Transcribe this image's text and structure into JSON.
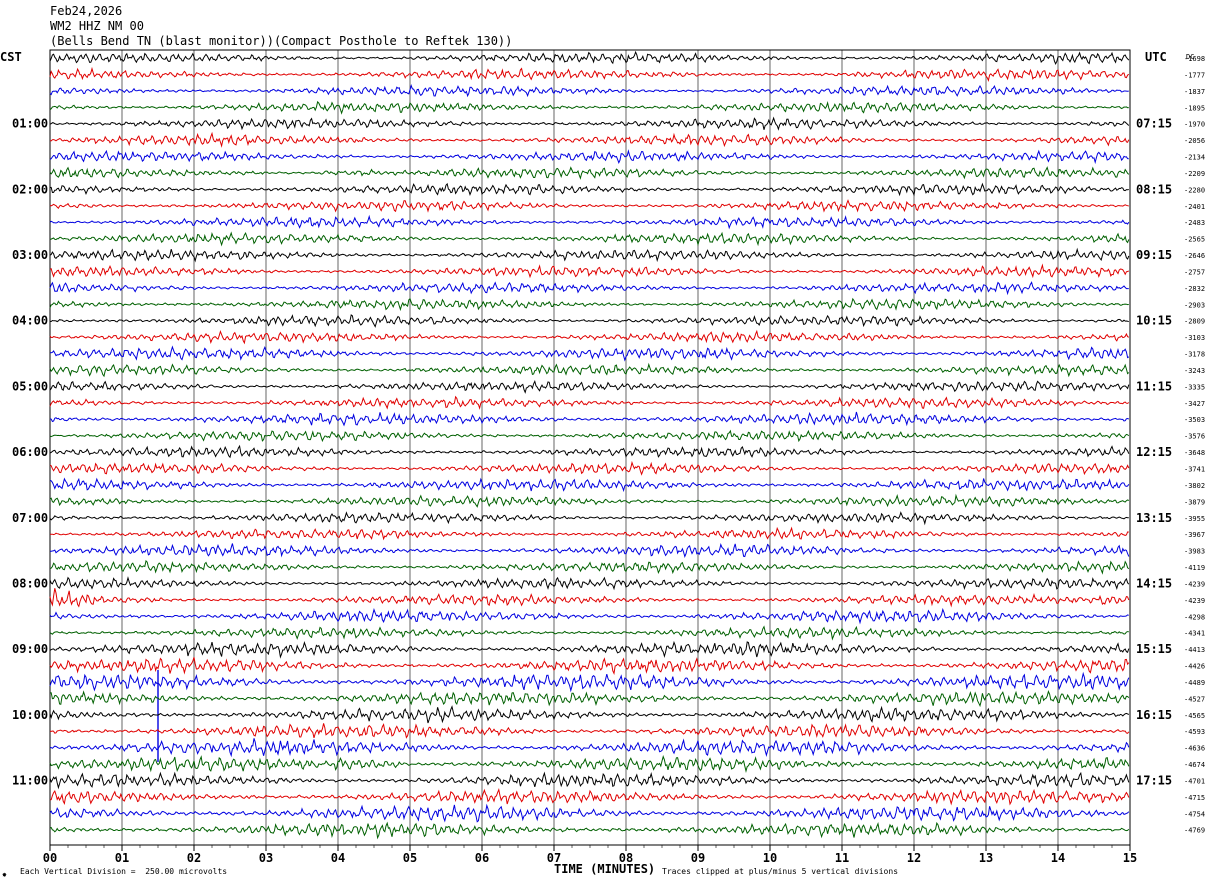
{
  "header": {
    "date": "Feb24,2026",
    "station": "WM2 HHZ NM 00",
    "description": "(Bells Bend TN (blast monitor))(Compact Posthole to Reftek 130))"
  },
  "timezones": {
    "left": "CST",
    "right": "UTC",
    "right_top": "DC"
  },
  "footer": {
    "division_note": "Each Vertical Division =  250.00 microvolts",
    "clip_note": "Traces clipped at plus/minus 5 vertical divisions",
    "corner_mark": "✸"
  },
  "colors": {
    "cycle": [
      "#000000",
      "#e00000",
      "#0000e0",
      "#006000"
    ],
    "grid": "#000000"
  },
  "chart_data": {
    "type": "line",
    "xlabel": "TIME (MINUTES)",
    "xlim": [
      0,
      15
    ],
    "x_ticks": [
      "00",
      "01",
      "02",
      "03",
      "04",
      "05",
      "06",
      "07",
      "08",
      "09",
      "10",
      "11",
      "12",
      "13",
      "14",
      "15"
    ],
    "trace_count": 48,
    "left_hour_labels": [
      {
        "row": 4,
        "label": "01:00"
      },
      {
        "row": 8,
        "label": "02:00"
      },
      {
        "row": 12,
        "label": "03:00"
      },
      {
        "row": 16,
        "label": "04:00"
      },
      {
        "row": 20,
        "label": "05:00"
      },
      {
        "row": 24,
        "label": "06:00"
      },
      {
        "row": 28,
        "label": "07:00"
      },
      {
        "row": 32,
        "label": "08:00"
      },
      {
        "row": 36,
        "label": "09:00"
      },
      {
        "row": 40,
        "label": "10:00"
      },
      {
        "row": 44,
        "label": "11:00"
      }
    ],
    "right_hour_labels": [
      {
        "row": 4,
        "label": "07:15"
      },
      {
        "row": 8,
        "label": "08:15"
      },
      {
        "row": 12,
        "label": "09:15"
      },
      {
        "row": 16,
        "label": "10:15"
      },
      {
        "row": 20,
        "label": "11:15"
      },
      {
        "row": 24,
        "label": "12:15"
      },
      {
        "row": 28,
        "label": "13:15"
      },
      {
        "row": 32,
        "label": "14:15"
      },
      {
        "row": 36,
        "label": "15:15"
      },
      {
        "row": 40,
        "label": "16:15"
      },
      {
        "row": 44,
        "label": "17:15"
      }
    ],
    "dc_offsets": [
      "-1698",
      "-1777",
      "-1837",
      "-1895",
      "-1970",
      "-2056",
      "-2134",
      "-2209",
      "-2280",
      "-2401",
      "-2483",
      "-2565",
      "-2646",
      "-2757",
      "-2832",
      "-2903",
      "-2809",
      "-3103",
      "-3178",
      "-3243",
      "-3335",
      "-3427",
      "-3503",
      "-3576",
      "-3648",
      "-3741",
      "-3802",
      "-3879",
      "-3955",
      "-3967",
      "-3983",
      "-4119",
      "-4239",
      "-4239",
      "-4298",
      "-4341",
      "-4413",
      "-4426",
      "-4489",
      "-4527",
      "-4565",
      "-4593",
      "-4636",
      "-4674",
      "-4701",
      "-4715",
      "-4754",
      "-4769"
    ]
  }
}
